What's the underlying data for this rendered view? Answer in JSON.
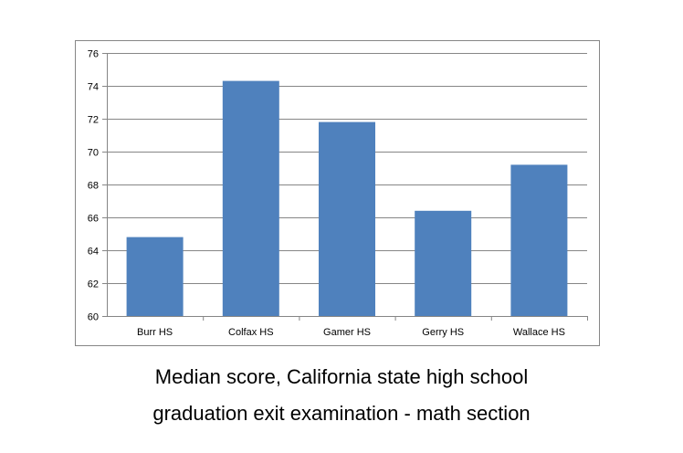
{
  "chart_data": {
    "type": "bar",
    "title": "Median score, California state high school graduation exit examination - math section",
    "title_lines": [
      "Median score, California state high school",
      "graduation exit examination - math section"
    ],
    "categories": [
      "Burr HS",
      "Colfax HS",
      "Gamer HS",
      "Gerry HS",
      "Wallace HS"
    ],
    "values": [
      64.8,
      74.3,
      71.8,
      66.4,
      69.2
    ],
    "xlabel": "",
    "ylabel": "",
    "ylim": [
      60,
      76
    ],
    "yticks": [
      60,
      62,
      64,
      66,
      68,
      70,
      72,
      74,
      76
    ],
    "grid": true,
    "legend": "none",
    "bar_color": "#4f81bd"
  }
}
